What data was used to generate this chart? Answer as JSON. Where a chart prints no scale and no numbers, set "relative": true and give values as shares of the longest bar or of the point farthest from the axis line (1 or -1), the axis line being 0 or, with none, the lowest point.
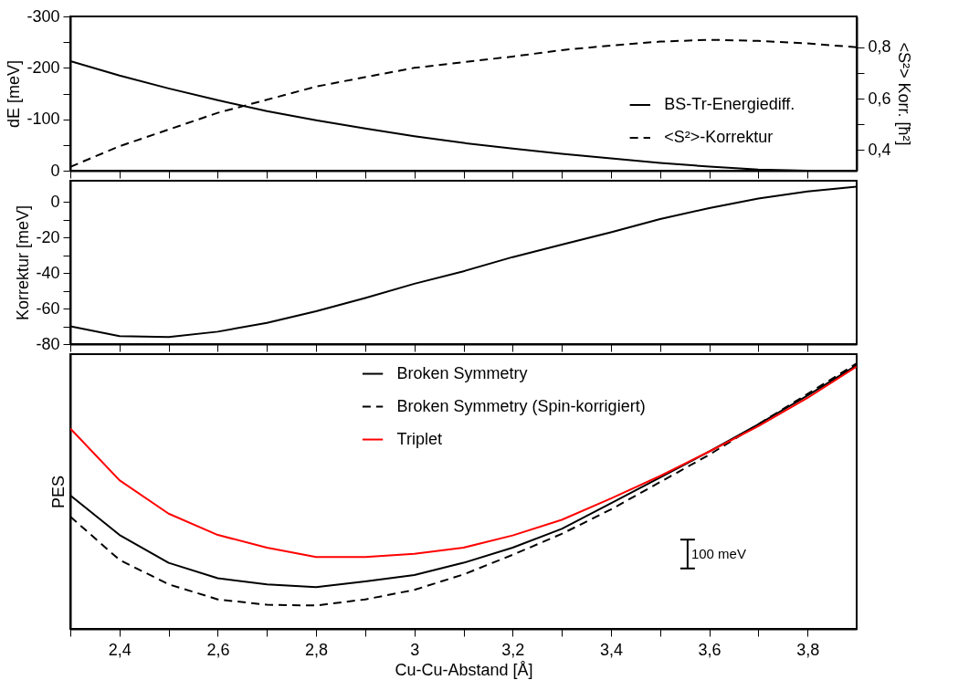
{
  "chart_data": [
    {
      "type": "line",
      "ylabel": "dE [meV]",
      "y2label": "<S²> Korr. [ħ²]",
      "legend": "right",
      "tick_labels": "y",
      "x": [
        2.3,
        2.4,
        2.5,
        2.6,
        2.7,
        2.8,
        2.9,
        3.0,
        3.1,
        3.2,
        3.3,
        3.4,
        3.5,
        3.6,
        3.7,
        3.8,
        3.9
      ],
      "xlim": [
        2.3,
        3.9
      ],
      "xticks": [
        2.3,
        2.4,
        2.5,
        2.6,
        2.7,
        2.8,
        2.9,
        3,
        3.1,
        3.2,
        3.3,
        3.4,
        3.5,
        3.6,
        3.7,
        3.8
      ],
      "ylim": [
        0,
        -300
      ],
      "yticks": [
        -300,
        {
          "value": -250,
          "label": null
        },
        -200,
        {
          "value": -150,
          "label": null
        },
        -100,
        {
          "value": -50,
          "label": null
        },
        0
      ],
      "y2lim": [
        0.32,
        0.92
      ],
      "y2ticks": [
        {
          "value": 0.4,
          "label": "0,4"
        },
        {
          "value": 0.5,
          "label": null
        },
        {
          "value": 0.6,
          "label": "0,6"
        },
        {
          "value": 0.7,
          "label": null
        },
        {
          "value": 0.8,
          "label": "0,8"
        }
      ],
      "series": [
        {
          "name": "BS-Tr-Energiediff.",
          "color": "#000000",
          "line_style": "solid",
          "values": [
            -213,
            -185,
            -160,
            -137,
            -116,
            -98,
            -82,
            -67,
            -54,
            -43,
            -33,
            -24,
            -15,
            -8,
            -2,
            0,
            0
          ]
        },
        {
          "name": "<S²>-Korrektur",
          "color": "#000000",
          "line_style": "dashed",
          "axis": "y2",
          "values": [
            0.335,
            0.415,
            0.48,
            0.545,
            0.596,
            0.647,
            0.684,
            0.72,
            0.742,
            0.764,
            0.789,
            0.807,
            0.822,
            0.829,
            0.825,
            0.815,
            0.8
          ]
        }
      ]
    },
    {
      "type": "line",
      "ylabel": "Korrektur [meV]",
      "tick_labels": "y",
      "x": [
        2.3,
        2.4,
        2.5,
        2.6,
        2.7,
        2.8,
        2.9,
        3.0,
        3.1,
        3.2,
        3.3,
        3.4,
        3.5,
        3.6,
        3.7,
        3.8,
        3.9
      ],
      "xlim": [
        2.3,
        3.9
      ],
      "xticks": [
        2.3,
        2.4,
        2.5,
        2.6,
        2.7,
        2.8,
        2.9,
        3,
        3.1,
        3.2,
        3.3,
        3.4,
        3.5,
        3.6,
        3.7,
        3.8
      ],
      "ylim": [
        -80,
        12
      ],
      "yticks": [
        -80,
        {
          "value": -70,
          "label": null
        },
        -60,
        {
          "value": -50,
          "label": null
        },
        -40,
        {
          "value": -30,
          "label": null
        },
        -20,
        {
          "value": -10,
          "label": null
        },
        0
      ],
      "series": [
        {
          "color": "#000000",
          "line_style": "solid",
          "values": [
            -70,
            -75.5,
            -76,
            -73,
            -68,
            -61.5,
            -54,
            -46,
            -39,
            -31,
            -24,
            -17,
            -9.6,
            -3.4,
            2,
            6,
            8.6
          ]
        }
      ]
    },
    {
      "type": "line",
      "ylabel": "PES",
      "xlabel": "Cu-Cu-Abstand [Å]",
      "legend": "top",
      "tick_labels": "x",
      "relative": true,
      "annotations": [
        "100 meV"
      ],
      "x": [
        2.3,
        2.4,
        2.5,
        2.6,
        2.7,
        2.8,
        2.9,
        3.0,
        3.1,
        3.2,
        3.3,
        3.4,
        3.5,
        3.6,
        3.7,
        3.8,
        3.9
      ],
      "xlim": [
        2.3,
        3.9
      ],
      "xticks": [
        {
          "value": 2.3,
          "label": null
        },
        {
          "value": 2.4,
          "label": "2,4"
        },
        {
          "value": 2.5,
          "label": null
        },
        {
          "value": 2.6,
          "label": "2,6"
        },
        {
          "value": 2.7,
          "label": null
        },
        {
          "value": 2.8,
          "label": "2,8"
        },
        {
          "value": 2.9,
          "label": null
        },
        3,
        {
          "value": 3.1,
          "label": null
        },
        {
          "value": 3.2,
          "label": "3,2"
        },
        {
          "value": 3.3,
          "label": null
        },
        {
          "value": 3.4,
          "label": "3,4"
        },
        {
          "value": 3.5,
          "label": null
        },
        {
          "value": 3.6,
          "label": "3,6"
        },
        {
          "value": 3.7,
          "label": null
        },
        {
          "value": 3.8,
          "label": "3,8"
        }
      ],
      "series": [
        {
          "name": "Broken Symmetry",
          "color": "#000000",
          "line_style": "solid",
          "values": [
            0.503,
            0.354,
            0.249,
            0.191,
            0.168,
            0.157,
            0.179,
            0.203,
            0.249,
            0.306,
            0.377,
            0.473,
            0.57,
            0.668,
            0.771,
            0.879,
            0.993
          ]
        },
        {
          "name": "Broken Symmetry (Spin-korrigiert)",
          "color": "#000000",
          "line_style": "dashed",
          "values": [
            0.423,
            0.26,
            0.168,
            0.111,
            0.091,
            0.088,
            0.111,
            0.147,
            0.205,
            0.279,
            0.358,
            0.45,
            0.553,
            0.656,
            0.771,
            0.885,
            1
          ]
        },
        {
          "name": "Triplet",
          "color": "#ff0000",
          "line_style": "solid",
          "values": [
            0.755,
            0.56,
            0.434,
            0.354,
            0.306,
            0.271,
            0.271,
            0.283,
            0.306,
            0.352,
            0.411,
            0.491,
            0.576,
            0.668,
            0.764,
            0.87,
            0.988
          ]
        }
      ]
    }
  ]
}
